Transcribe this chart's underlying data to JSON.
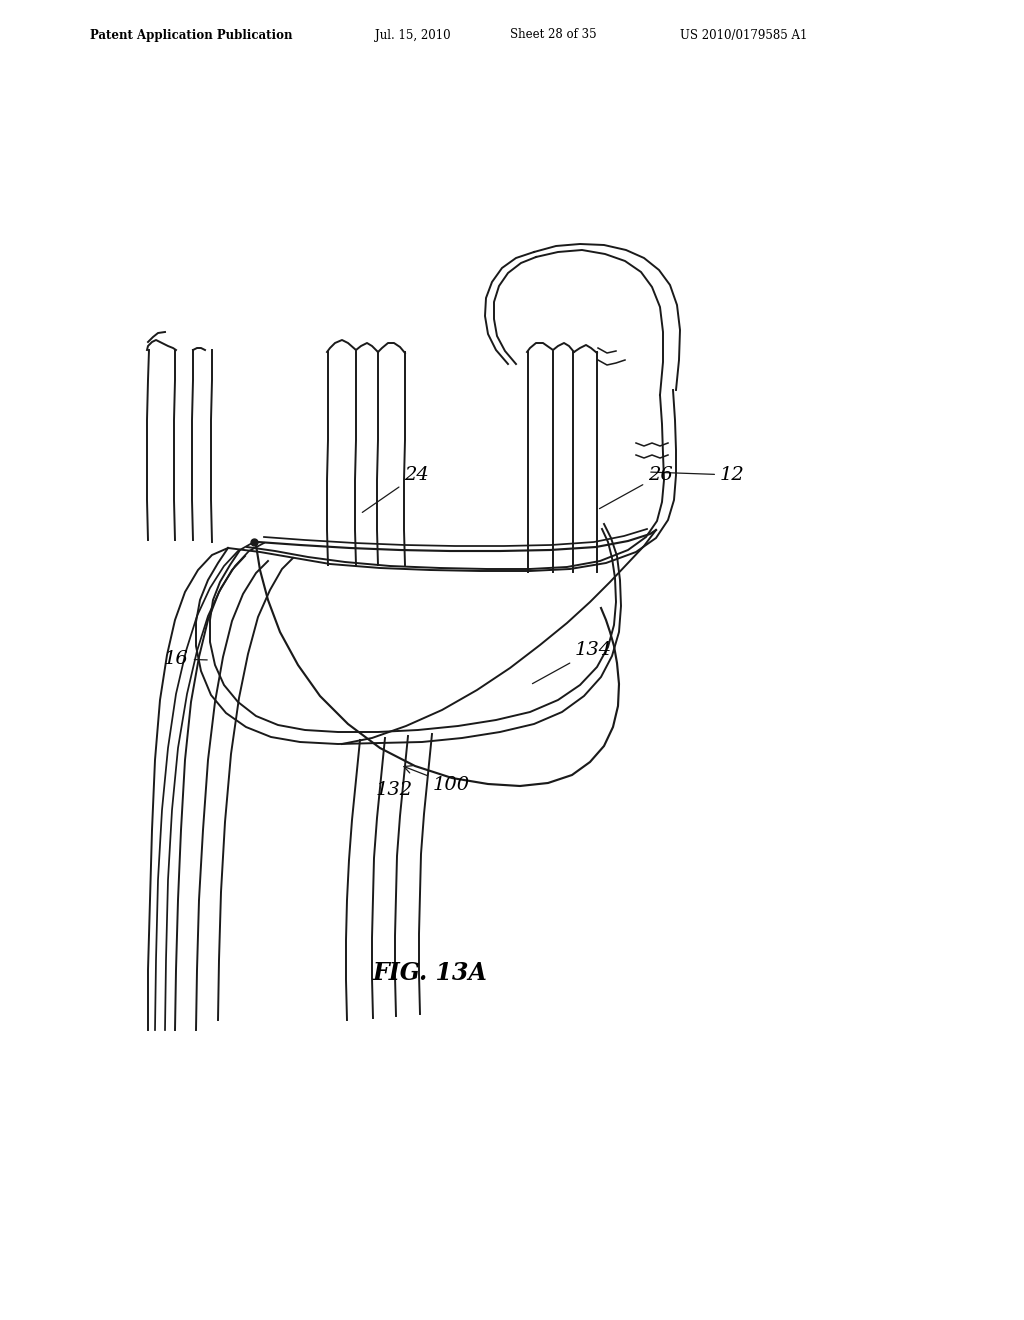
{
  "background_color": "#ffffff",
  "line_color": "#1a1a1a",
  "header_left": "Patent Application Publication",
  "header_mid1": "Jul. 15, 2010",
  "header_mid2": "Sheet 28 of 35",
  "header_right": "US 2010/0179585 A1",
  "fig_label": "FIG. 13A",
  "label_12": "12",
  "label_16": "16",
  "label_24": "24",
  "label_26": "26",
  "label_100": "100",
  "label_132": "132",
  "label_134": "134"
}
